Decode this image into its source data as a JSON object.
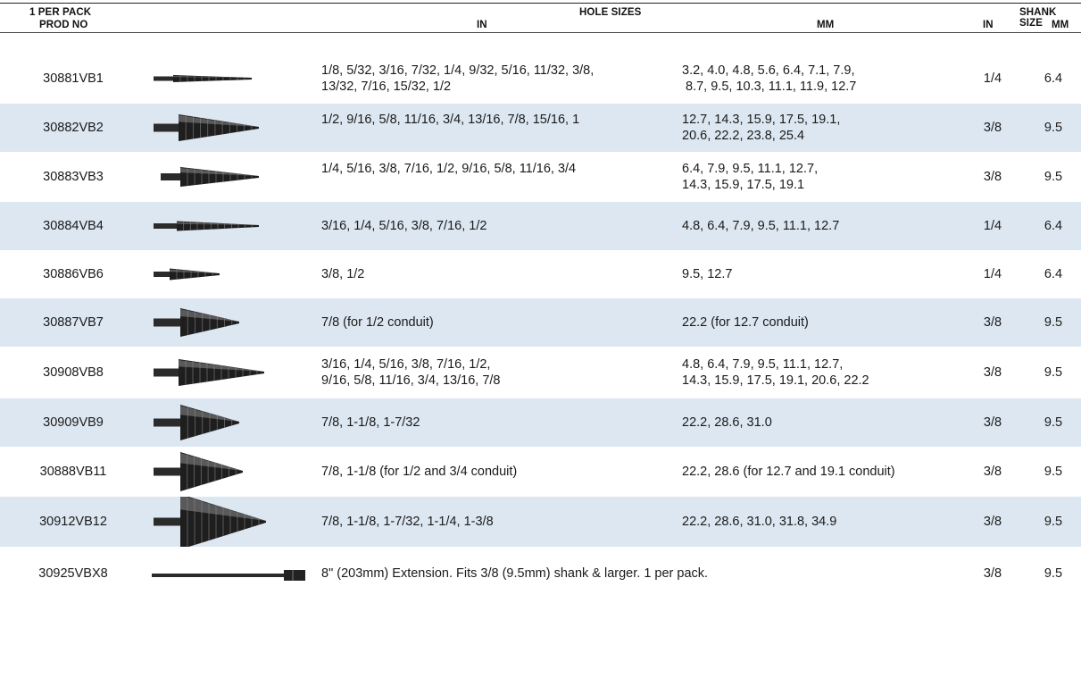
{
  "headers": {
    "pack": "1 PER PACK",
    "prod": "PROD NO",
    "hole_sizes": "HOLE SIZES",
    "hole_in": "IN",
    "hole_mm": "MM",
    "shank_size": "SHANK SIZE",
    "shank_in": "IN",
    "shank_mm": "MM"
  },
  "rows": [
    {
      "prod": "30881VB1",
      "in": [
        "1/8, 5/32, 3/16, 7/32, 1/4, 9/32, 5/16, 11/32, 3/8,",
        "13/32, 7/16, 15/32, 1/2"
      ],
      "mm": [
        "3.2, 4.0, 4.8, 5.6, 6.4, 7.1, 7.9,",
        " 8.7, 9.5, 10.3, 11.1, 11.9, 12.7"
      ],
      "shank_in": "1/4",
      "shank_mm": "6.4",
      "icon": "step-drill-bit-icon"
    },
    {
      "prod": "30882VB2",
      "in": [
        "1/2, 9/16, 5/8, 11/16, 3/4, 13/16, 7/8, 15/16, 1"
      ],
      "mm": [
        "12.7, 14.3, 15.9, 17.5, 19.1,",
        "20.6, 22.2, 23.8, 25.4"
      ],
      "shank_in": "3/8",
      "shank_mm": "9.5",
      "icon": "step-drill-bit-icon"
    },
    {
      "prod": "30883VB3",
      "in": [
        "1/4, 5/16, 3/8, 7/16, 1/2, 9/16, 5/8, 11/16, 3/4"
      ],
      "mm": [
        "6.4, 7.9, 9.5, 11.1, 12.7,",
        "14.3, 15.9, 17.5, 19.1"
      ],
      "shank_in": "3/8",
      "shank_mm": "9.5",
      "icon": "step-drill-bit-icon"
    },
    {
      "prod": "30884VB4",
      "in": [
        "3/16, 1/4, 5/16, 3/8, 7/16, 1/2"
      ],
      "mm": [
        "4.8, 6.4, 7.9, 9.5, 11.1, 12.7"
      ],
      "shank_in": "1/4",
      "shank_mm": "6.4",
      "icon": "step-drill-bit-icon"
    },
    {
      "prod": "30886VB6",
      "in": [
        "3/8, 1/2"
      ],
      "mm": [
        "9.5, 12.7"
      ],
      "shank_in": "1/4",
      "shank_mm": "6.4",
      "icon": "step-drill-bit-icon"
    },
    {
      "prod": "30887VB7",
      "in": [
        "7/8 (for 1/2 conduit)"
      ],
      "mm": [
        "22.2 (for 12.7 conduit)"
      ],
      "shank_in": "3/8",
      "shank_mm": "9.5",
      "icon": "step-drill-bit-icon"
    },
    {
      "prod": "30908VB8",
      "in": [
        "3/16, 1/4, 5/16, 3/8, 7/16, 1/2,",
        "9/16, 5/8, 11/16, 3/4, 13/16, 7/8"
      ],
      "mm": [
        "4.8, 6.4, 7.9, 9.5, 11.1, 12.7,",
        "14.3, 15.9, 17.5, 19.1, 20.6, 22.2"
      ],
      "shank_in": "3/8",
      "shank_mm": "9.5",
      "icon": "step-drill-bit-icon"
    },
    {
      "prod": "30909VB9",
      "in": [
        "7/8, 1-1/8, 1-7/32"
      ],
      "mm": [
        "22.2, 28.6, 31.0"
      ],
      "shank_in": "3/8",
      "shank_mm": "9.5",
      "icon": "step-drill-bit-icon"
    },
    {
      "prod": "30888VB11",
      "in": [
        "7/8, 1-1/8 (for 1/2 and 3/4 conduit)"
      ],
      "mm": [
        "22.2, 28.6 (for 12.7 and 19.1 conduit)"
      ],
      "shank_in": "3/8",
      "shank_mm": "9.5",
      "icon": "step-drill-bit-icon"
    },
    {
      "prod": "30912VB12",
      "in": [
        "7/8, 1-1/8, 1-7/32, 1-1/4, 1-3/8"
      ],
      "mm": [
        "22.2, 28.6, 31.0, 31.8, 34.9"
      ],
      "shank_in": "3/8",
      "shank_mm": "9.5",
      "icon": "step-drill-bit-icon"
    }
  ],
  "extension_row": {
    "prod": "30925VBX8",
    "description": "8\" (203mm) Extension. Fits 3/8 (9.5mm) shank & larger. 1 per pack.",
    "shank_in": "3/8",
    "shank_mm": "9.5",
    "icon": "extension-bar-icon"
  }
}
